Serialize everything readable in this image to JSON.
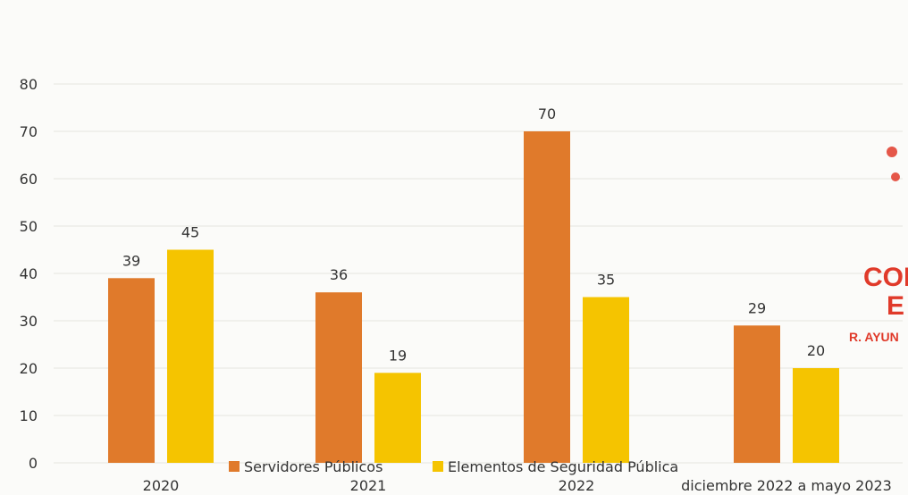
{
  "chart_data": {
    "type": "bar",
    "categories": [
      "2020",
      "2021",
      "2022",
      "diciembre 2022 a mayo 2023"
    ],
    "series": [
      {
        "name": "Servidores Públicos",
        "color": "#e07a2b",
        "values": [
          39,
          36,
          70,
          29
        ]
      },
      {
        "name": "Elementos de Seguridad Pública",
        "color": "#f5c400",
        "values": [
          45,
          19,
          35,
          20
        ]
      }
    ],
    "ylim": [
      0,
      80
    ],
    "yticks": [
      "0",
      "10",
      "20",
      "30",
      "40",
      "50",
      "60",
      "70",
      "80"
    ],
    "grid": true,
    "data_labels": true,
    "legend": "bottom-center"
  },
  "stamp": {
    "lines": [
      "CON",
      "E",
      "R. AYUN"
    ],
    "color": "#e03a2a"
  }
}
